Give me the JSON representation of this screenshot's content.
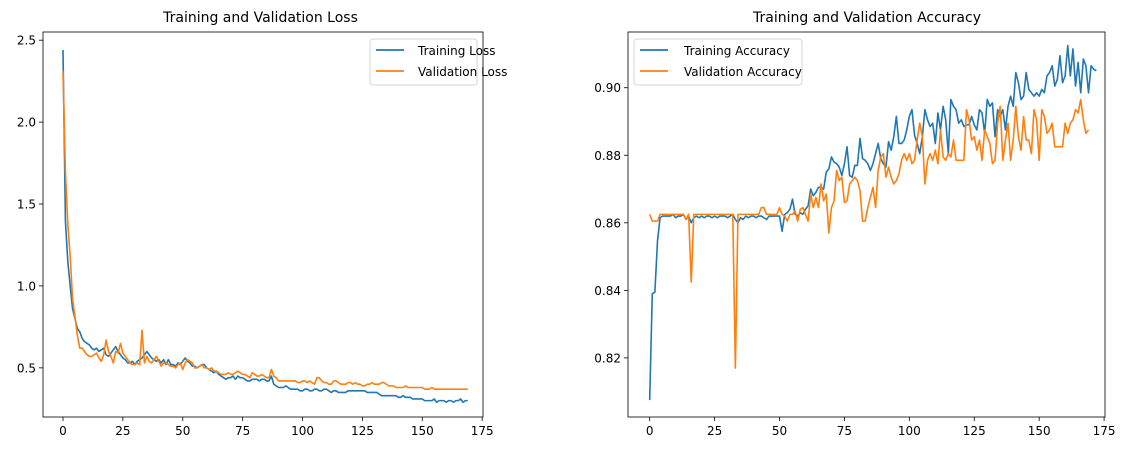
{
  "figure": {
    "colors": {
      "training": "#1f77b4",
      "validation": "#ff7f0e"
    }
  },
  "chart_data": [
    {
      "type": "line",
      "title": "Training and Validation Loss",
      "xlabel": "",
      "ylabel": "",
      "xlim": [
        -8.35,
        175.35
      ],
      "ylim": [
        0.2,
        2.55
      ],
      "xticks": [
        0,
        25,
        50,
        75,
        100,
        125,
        150,
        175
      ],
      "xtick_labels": [
        "0",
        "25",
        "50",
        "75",
        "100",
        "125",
        "150",
        "175"
      ],
      "yticks": [
        0.5,
        1.0,
        1.5,
        2.0,
        2.5
      ],
      "ytick_labels": [
        "0.5",
        "1.0",
        "1.5",
        "2.0",
        "2.5"
      ],
      "grid": false,
      "legend_position": "top-right",
      "series": [
        {
          "name": "Training Loss",
          "color": "#1f77b4",
          "values": [
            2.44,
            1.4,
            1.15,
            1.0,
            0.86,
            0.8,
            0.74,
            0.72,
            0.68,
            0.66,
            0.65,
            0.64,
            0.62,
            0.61,
            0.62,
            0.6,
            0.61,
            0.62,
            0.58,
            0.57,
            0.59,
            0.61,
            0.63,
            0.6,
            0.58,
            0.56,
            0.55,
            0.53,
            0.53,
            0.54,
            0.52,
            0.54,
            0.55,
            0.56,
            0.58,
            0.6,
            0.58,
            0.56,
            0.55,
            0.54,
            0.55,
            0.53,
            0.55,
            0.52,
            0.55,
            0.52,
            0.52,
            0.51,
            0.53,
            0.52,
            0.54,
            0.56,
            0.54,
            0.53,
            0.51,
            0.51,
            0.5,
            0.51,
            0.52,
            0.52,
            0.5,
            0.49,
            0.48,
            0.47,
            0.48,
            0.46,
            0.45,
            0.44,
            0.43,
            0.44,
            0.44,
            0.45,
            0.43,
            0.45,
            0.44,
            0.44,
            0.43,
            0.42,
            0.42,
            0.43,
            0.43,
            0.43,
            0.42,
            0.43,
            0.43,
            0.42,
            0.42,
            0.45,
            0.4,
            0.39,
            0.38,
            0.38,
            0.38,
            0.39,
            0.38,
            0.37,
            0.37,
            0.37,
            0.37,
            0.36,
            0.36,
            0.37,
            0.37,
            0.36,
            0.36,
            0.37,
            0.37,
            0.36,
            0.36,
            0.37,
            0.37,
            0.36,
            0.35,
            0.36,
            0.36,
            0.35,
            0.35,
            0.35,
            0.35,
            0.36,
            0.36,
            0.36,
            0.36,
            0.36,
            0.36,
            0.36,
            0.36,
            0.35,
            0.35,
            0.35,
            0.35,
            0.35,
            0.34,
            0.33,
            0.33,
            0.33,
            0.33,
            0.33,
            0.33,
            0.33,
            0.32,
            0.32,
            0.33,
            0.32,
            0.32,
            0.32,
            0.31,
            0.31,
            0.31,
            0.31,
            0.31,
            0.3,
            0.3,
            0.3,
            0.3,
            0.31,
            0.29,
            0.3,
            0.3,
            0.3,
            0.29,
            0.3,
            0.3,
            0.29,
            0.3,
            0.3,
            0.31,
            0.29,
            0.3,
            0.3
          ]
        },
        {
          "name": "Validation Loss",
          "color": "#ff7f0e",
          "values": [
            2.31,
            1.7,
            1.38,
            1.18,
            0.92,
            0.81,
            0.7,
            0.62,
            0.62,
            0.6,
            0.58,
            0.57,
            0.57,
            0.58,
            0.59,
            0.56,
            0.54,
            0.58,
            0.67,
            0.6,
            0.57,
            0.53,
            0.6,
            0.59,
            0.65,
            0.59,
            0.57,
            0.55,
            0.53,
            0.52,
            0.52,
            0.53,
            0.52,
            0.73,
            0.53,
            0.57,
            0.54,
            0.53,
            0.55,
            0.57,
            0.54,
            0.51,
            0.53,
            0.53,
            0.52,
            0.51,
            0.51,
            0.5,
            0.52,
            0.53,
            0.49,
            0.53,
            0.55,
            0.54,
            0.53,
            0.5,
            0.5,
            0.51,
            0.52,
            0.5,
            0.5,
            0.49,
            0.5,
            0.48,
            0.48,
            0.47,
            0.46,
            0.46,
            0.46,
            0.47,
            0.46,
            0.46,
            0.47,
            0.48,
            0.47,
            0.46,
            0.46,
            0.45,
            0.44,
            0.47,
            0.46,
            0.45,
            0.45,
            0.46,
            0.45,
            0.44,
            0.44,
            0.49,
            0.45,
            0.44,
            0.42,
            0.42,
            0.42,
            0.42,
            0.42,
            0.42,
            0.42,
            0.42,
            0.41,
            0.41,
            0.42,
            0.42,
            0.41,
            0.42,
            0.41,
            0.4,
            0.44,
            0.44,
            0.42,
            0.41,
            0.41,
            0.4,
            0.4,
            0.42,
            0.42,
            0.41,
            0.4,
            0.4,
            0.4,
            0.41,
            0.41,
            0.4,
            0.41,
            0.4,
            0.4,
            0.39,
            0.39,
            0.4,
            0.4,
            0.41,
            0.4,
            0.4,
            0.4,
            0.41,
            0.41,
            0.4,
            0.39,
            0.39,
            0.39,
            0.38,
            0.38,
            0.38,
            0.38,
            0.39,
            0.38,
            0.38,
            0.38,
            0.38,
            0.38,
            0.38,
            0.38,
            0.37,
            0.37,
            0.37,
            0.38,
            0.37,
            0.37,
            0.37,
            0.37,
            0.37,
            0.37,
            0.37,
            0.37,
            0.37,
            0.37,
            0.37,
            0.37,
            0.37,
            0.37,
            0.37
          ]
        }
      ]
    },
    {
      "type": "line",
      "title": "Training and Validation Accuracy",
      "xlabel": "",
      "ylabel": "",
      "xlim": [
        -8.35,
        175.35
      ],
      "ylim": [
        0.8025,
        0.9165
      ],
      "xticks": [
        0,
        25,
        50,
        75,
        100,
        125,
        150,
        175
      ],
      "xtick_labels": [
        "0",
        "25",
        "50",
        "75",
        "100",
        "125",
        "150",
        "175"
      ],
      "yticks": [
        0.82,
        0.84,
        0.86,
        0.88,
        0.9
      ],
      "ytick_labels": [
        "0.82",
        "0.84",
        "0.86",
        "0.88",
        "0.90"
      ],
      "grid": false,
      "legend_position": "top-left",
      "series": [
        {
          "name": "Training Accuracy",
          "color": "#1f77b4",
          "values": [
            0.8075,
            0.839,
            0.8395,
            0.8545,
            0.8615,
            0.862,
            0.862,
            0.862,
            0.862,
            0.8625,
            0.8615,
            0.862,
            0.862,
            0.8625,
            0.861,
            0.862,
            0.86,
            0.8615,
            0.862,
            0.8615,
            0.862,
            0.8615,
            0.862,
            0.862,
            0.8615,
            0.862,
            0.8615,
            0.862,
            0.862,
            0.862,
            0.8615,
            0.862,
            0.8625,
            0.861,
            0.86,
            0.8615,
            0.861,
            0.862,
            0.8615,
            0.862,
            0.862,
            0.8615,
            0.862,
            0.862,
            0.8615,
            0.861,
            0.862,
            0.862,
            0.862,
            0.862,
            0.862,
            0.8575,
            0.8625,
            0.863,
            0.864,
            0.867,
            0.8625,
            0.862,
            0.863,
            0.8625,
            0.864,
            0.865,
            0.87,
            0.868,
            0.869,
            0.8705,
            0.8705,
            0.87,
            0.875,
            0.876,
            0.8795,
            0.878,
            0.8775,
            0.8765,
            0.874,
            0.8775,
            0.8825,
            0.874,
            0.8735,
            0.877,
            0.877,
            0.885,
            0.879,
            0.8785,
            0.8775,
            0.8755,
            0.8775,
            0.8805,
            0.8835,
            0.879,
            0.8775,
            0.8765,
            0.884,
            0.8815,
            0.8855,
            0.8915,
            0.8835,
            0.8835,
            0.8845,
            0.8875,
            0.8915,
            0.8935,
            0.886,
            0.8835,
            0.8805,
            0.8855,
            0.8935,
            0.8905,
            0.8885,
            0.8895,
            0.8835,
            0.8925,
            0.8875,
            0.8945,
            0.8905,
            0.8805,
            0.8965,
            0.8945,
            0.8935,
            0.8895,
            0.8905,
            0.8885,
            0.889,
            0.889,
            0.8915,
            0.889,
            0.8875,
            0.8935,
            0.8925,
            0.8865,
            0.8965,
            0.8945,
            0.8955,
            0.8855,
            0.8935,
            0.8915,
            0.8935,
            0.8875,
            0.8945,
            0.8975,
            0.8945,
            0.9045,
            0.9015,
            0.8965,
            0.8975,
            0.9045,
            0.8995,
            0.8985,
            0.8975,
            0.8985,
            0.8975,
            0.8995,
            0.8985,
            0.9035,
            0.9045,
            0.9065,
            0.9005,
            0.9025,
            0.9095,
            0.9015,
            0.9035,
            0.9125,
            0.9035,
            0.9115,
            0.9005,
            0.9075,
            0.8985,
            0.9085,
            0.9065,
            0.8985,
            0.9065,
            0.9055,
            0.905
          ]
        },
        {
          "name": "Validation Accuracy",
          "color": "#ff7f0e",
          "values": [
            0.8625,
            0.8605,
            0.8605,
            0.8605,
            0.8625,
            0.8625,
            0.8625,
            0.8625,
            0.8625,
            0.8625,
            0.8625,
            0.8625,
            0.8625,
            0.8625,
            0.861,
            0.8625,
            0.8425,
            0.8625,
            0.8625,
            0.8625,
            0.8625,
            0.8625,
            0.8625,
            0.8625,
            0.8625,
            0.8625,
            0.8625,
            0.8625,
            0.8625,
            0.8625,
            0.8625,
            0.8625,
            0.8625,
            0.817,
            0.8625,
            0.8625,
            0.8625,
            0.8625,
            0.8625,
            0.8625,
            0.8625,
            0.8625,
            0.8625,
            0.8645,
            0.8645,
            0.8625,
            0.8625,
            0.8625,
            0.8625,
            0.8625,
            0.8645,
            0.8625,
            0.862,
            0.8605,
            0.8625,
            0.8625,
            0.8635,
            0.8605,
            0.864,
            0.8645,
            0.8625,
            0.8605,
            0.8685,
            0.8645,
            0.8675,
            0.8645,
            0.8715,
            0.8665,
            0.8685,
            0.857,
            0.8645,
            0.8665,
            0.8755,
            0.8725,
            0.8735,
            0.866,
            0.8665,
            0.8715,
            0.8725,
            0.8735,
            0.8725,
            0.8695,
            0.8605,
            0.8605,
            0.8645,
            0.8675,
            0.8705,
            0.8645,
            0.8755,
            0.8795,
            0.8805,
            0.8735,
            0.8765,
            0.8735,
            0.8715,
            0.8725,
            0.8745,
            0.8785,
            0.8805,
            0.8785,
            0.8805,
            0.8775,
            0.8785,
            0.8845,
            0.8895,
            0.8855,
            0.8715,
            0.8785,
            0.8805,
            0.8785,
            0.8815,
            0.8775,
            0.8875,
            0.8795,
            0.8785,
            0.8805,
            0.8795,
            0.8845,
            0.8785,
            0.8785,
            0.8785,
            0.8785,
            0.8935,
            0.8905,
            0.8845,
            0.8855,
            0.8815,
            0.8845,
            0.8785,
            0.8875,
            0.8855,
            0.8835,
            0.8775,
            0.8785,
            0.8895,
            0.8945,
            0.8785,
            0.8845,
            0.8895,
            0.8785,
            0.8845,
            0.8945,
            0.8855,
            0.8815,
            0.8915,
            0.8845,
            0.8845,
            0.8805,
            0.8935,
            0.8905,
            0.8785,
            0.8935,
            0.8915,
            0.8865,
            0.8875,
            0.8895,
            0.8825,
            0.8825,
            0.8825,
            0.8825,
            0.8895,
            0.8865,
            0.8895,
            0.8905,
            0.8935,
            0.8925,
            0.8965,
            0.8905,
            0.8865,
            0.8875
          ]
        }
      ]
    }
  ]
}
